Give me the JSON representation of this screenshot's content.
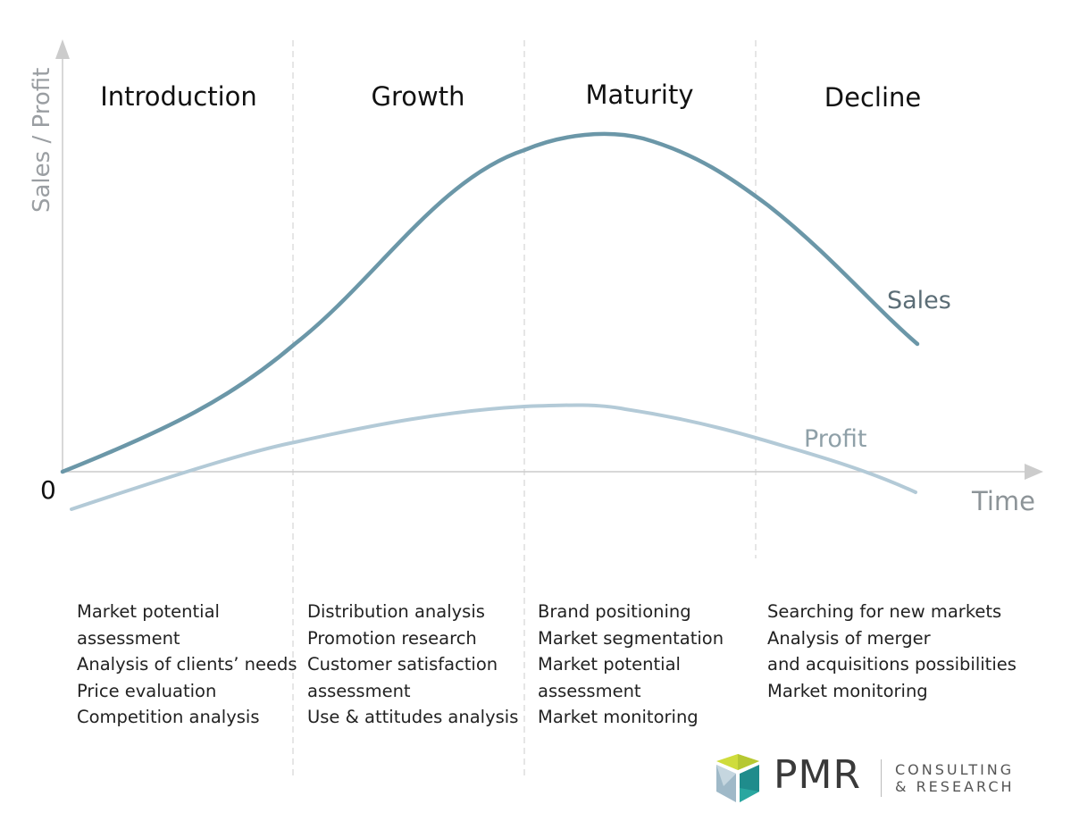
{
  "axes": {
    "y_label": "Sales / Profit",
    "x_label": "Time",
    "origin_label": "0"
  },
  "stages": [
    {
      "name": "Introduction",
      "activities": [
        "Market potential",
        "assessment",
        "Analysis of clients’ needs",
        "Price evaluation",
        "Competition analysis"
      ]
    },
    {
      "name": "Growth",
      "activities": [
        "Distribution analysis",
        "Promotion research",
        "Customer satisfaction",
        "assessment",
        "Use & attitudes analysis"
      ]
    },
    {
      "name": "Maturity",
      "activities": [
        "Brand positioning",
        "Market segmentation",
        "Market potential",
        "assessment",
        "Market monitoring"
      ]
    },
    {
      "name": "Decline",
      "activities": [
        "Searching for new markets",
        "Analysis of merger",
        "and acquisitions possibilities",
        "Market monitoring"
      ]
    }
  ],
  "curves": {
    "sales": {
      "label": "Sales",
      "color": "#6b97a8"
    },
    "profit": {
      "label": "Profit",
      "color": "#b3cad7"
    }
  },
  "colors": {
    "axis": "#cccccc",
    "divider": "#dddddd",
    "sales_label": "#5b6d76",
    "profit_label": "#8fa0a8"
  },
  "logo": {
    "brand": "PMR",
    "subtitle_line1": "CONSULTING",
    "subtitle_line2": "& RESEARCH"
  }
}
